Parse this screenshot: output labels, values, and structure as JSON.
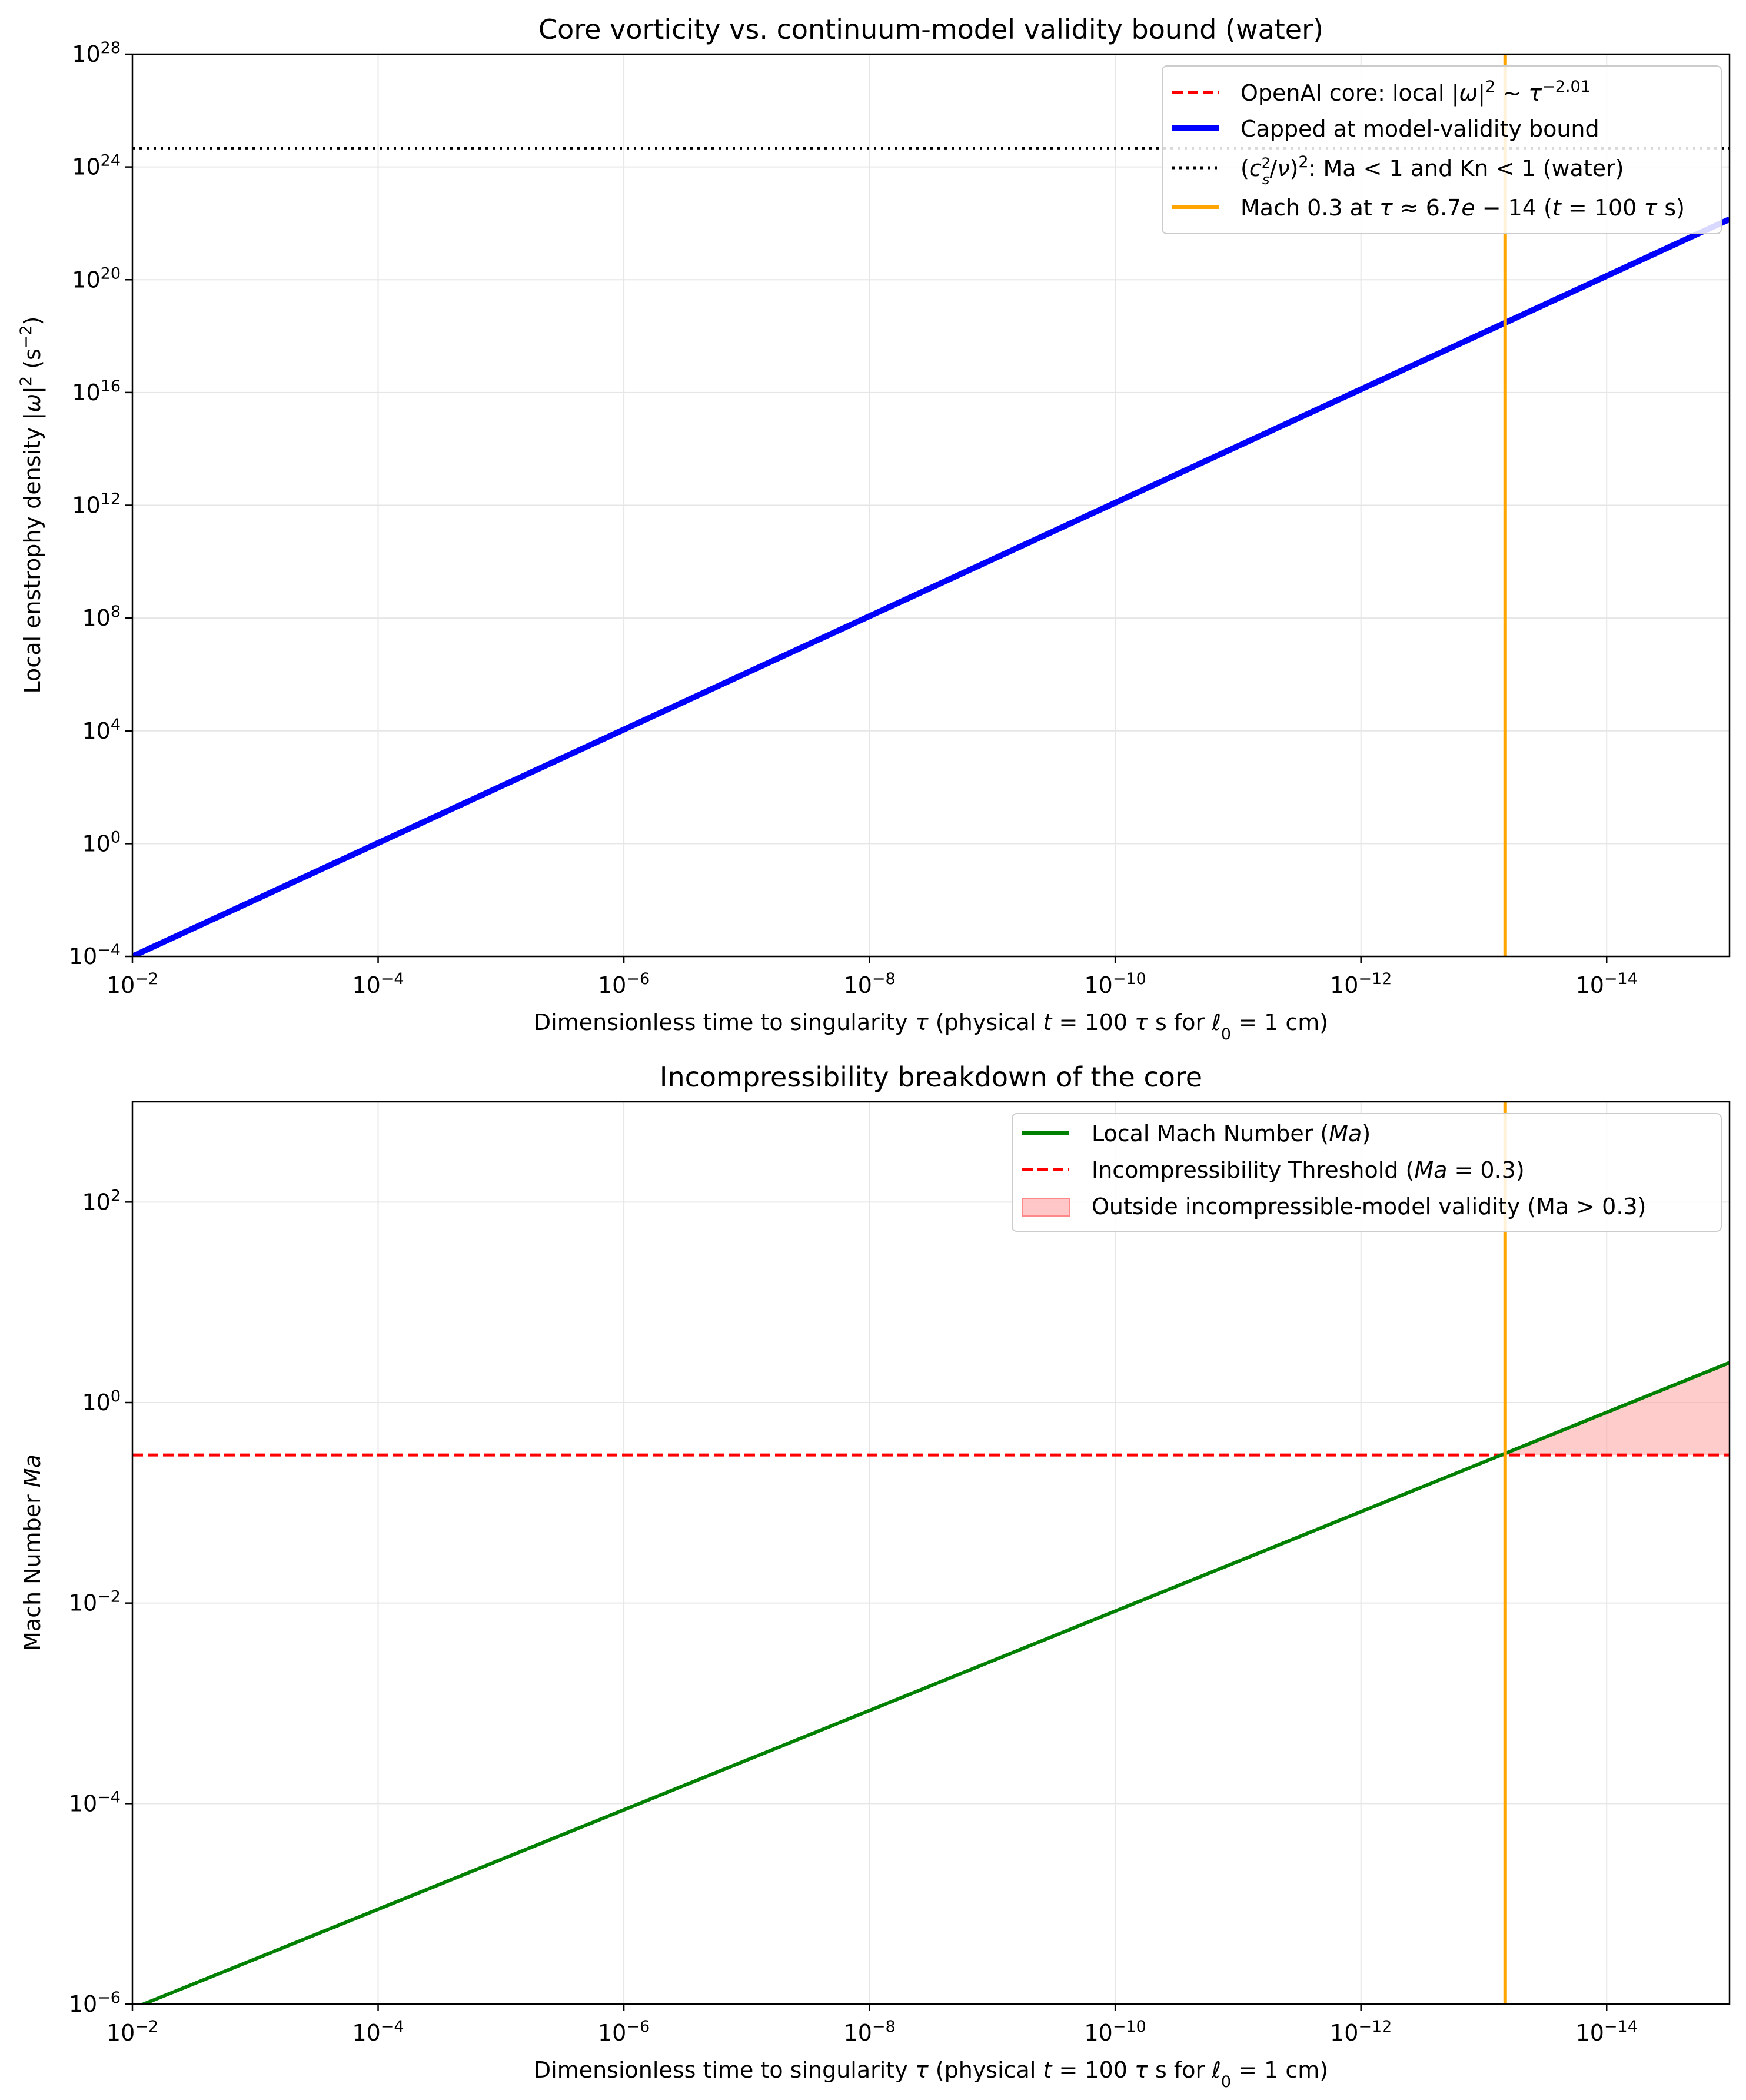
{
  "chart_data": [
    {
      "type": "line",
      "title": "Core vorticity vs. continuum-model validity bound (water)",
      "xlabel": "Dimensionless time to singularity τ (physical t = 100 τ s for ℓ₀ = 1 cm)",
      "ylabel": "Local enstrophy density |ω|² (s⁻²)",
      "x_scale": "log",
      "y_scale": "log",
      "x_inverted": true,
      "xlim": [
        0.01,
        1e-15
      ],
      "ylim": [
        0.0001,
        1e+28
      ],
      "x_ticks": [
        "10^-2",
        "10^-4",
        "10^-6",
        "10^-8",
        "10^-10",
        "10^-12",
        "10^-14"
      ],
      "y_ticks": [
        "10^-4",
        "10^0",
        "10^4",
        "10^8",
        "10^12",
        "10^16",
        "10^20",
        "10^24",
        "10^28"
      ],
      "grid": true,
      "legend_position": "top-right",
      "series": [
        {
          "name": "OpenAI core: local |ω|² ~ τ^-2.01",
          "color": "#ff0000",
          "style": "dashed",
          "x": [
            0.01,
            1e-15
          ],
          "y": [
            0.0001,
            1.4e+22
          ]
        },
        {
          "name": "Capped at model-validity bound",
          "color": "#0000ff",
          "style": "solid-thick",
          "x": [
            0.01,
            1e-15
          ],
          "y": [
            0.0001,
            1.4e+22
          ]
        },
        {
          "name": "(c_s²/ν)²: Ma < 1 and Kn < 1 (water)",
          "color": "#000000",
          "style": "dotted",
          "x": [
            0.01,
            1e-15
          ],
          "y": [
            4.5e+24,
            4.5e+24
          ]
        },
        {
          "name": "Mach 0.3 at τ ≈ 6.7e-14 (t = 100 τ s)",
          "color": "#ffa500",
          "style": "vertical",
          "x": [
            6.7e-14,
            6.7e-14
          ],
          "y": [
            0.0001,
            1e+28
          ]
        }
      ]
    },
    {
      "type": "line",
      "title": "Incompressibility breakdown of the core",
      "xlabel": "Dimensionless time to singularity τ (physical t = 100 τ s for ℓ₀ = 1 cm)",
      "ylabel": "Mach Number Ma",
      "x_scale": "log",
      "y_scale": "log",
      "x_inverted": true,
      "xlim": [
        0.01,
        1e-15
      ],
      "ylim": [
        1e-06,
        1000.0
      ],
      "x_ticks": [
        "10^-2",
        "10^-4",
        "10^-6",
        "10^-8",
        "10^-10",
        "10^-12",
        "10^-14"
      ],
      "y_ticks": [
        "10^-6",
        "10^-4",
        "10^-2",
        "10^0",
        "10^2"
      ],
      "grid": true,
      "legend_position": "top-right",
      "series": [
        {
          "name": "Local Mach Number (Ma)",
          "color": "#008000",
          "style": "solid",
          "x": [
            0.01,
            1e-15
          ],
          "y": [
            9e-07,
            2.5
          ]
        },
        {
          "name": "Incompressibility Threshold (Ma = 0.3)",
          "color": "#ff0000",
          "style": "dashed",
          "x": [
            0.01,
            1e-15
          ],
          "y": [
            0.3,
            0.3
          ]
        },
        {
          "name": "Outside incompressible-model validity (Ma > 0.3)",
          "color": "#ff9999",
          "style": "fill",
          "x": [
            6.7e-14,
            1e-15
          ],
          "y_low": [
            0.3,
            0.3
          ],
          "y_high": [
            0.3,
            2.5
          ]
        },
        {
          "name": "",
          "color": "#ffa500",
          "style": "vertical",
          "x": [
            6.7e-14,
            6.7e-14
          ],
          "y": [
            1e-06,
            1000.0
          ]
        }
      ]
    }
  ]
}
